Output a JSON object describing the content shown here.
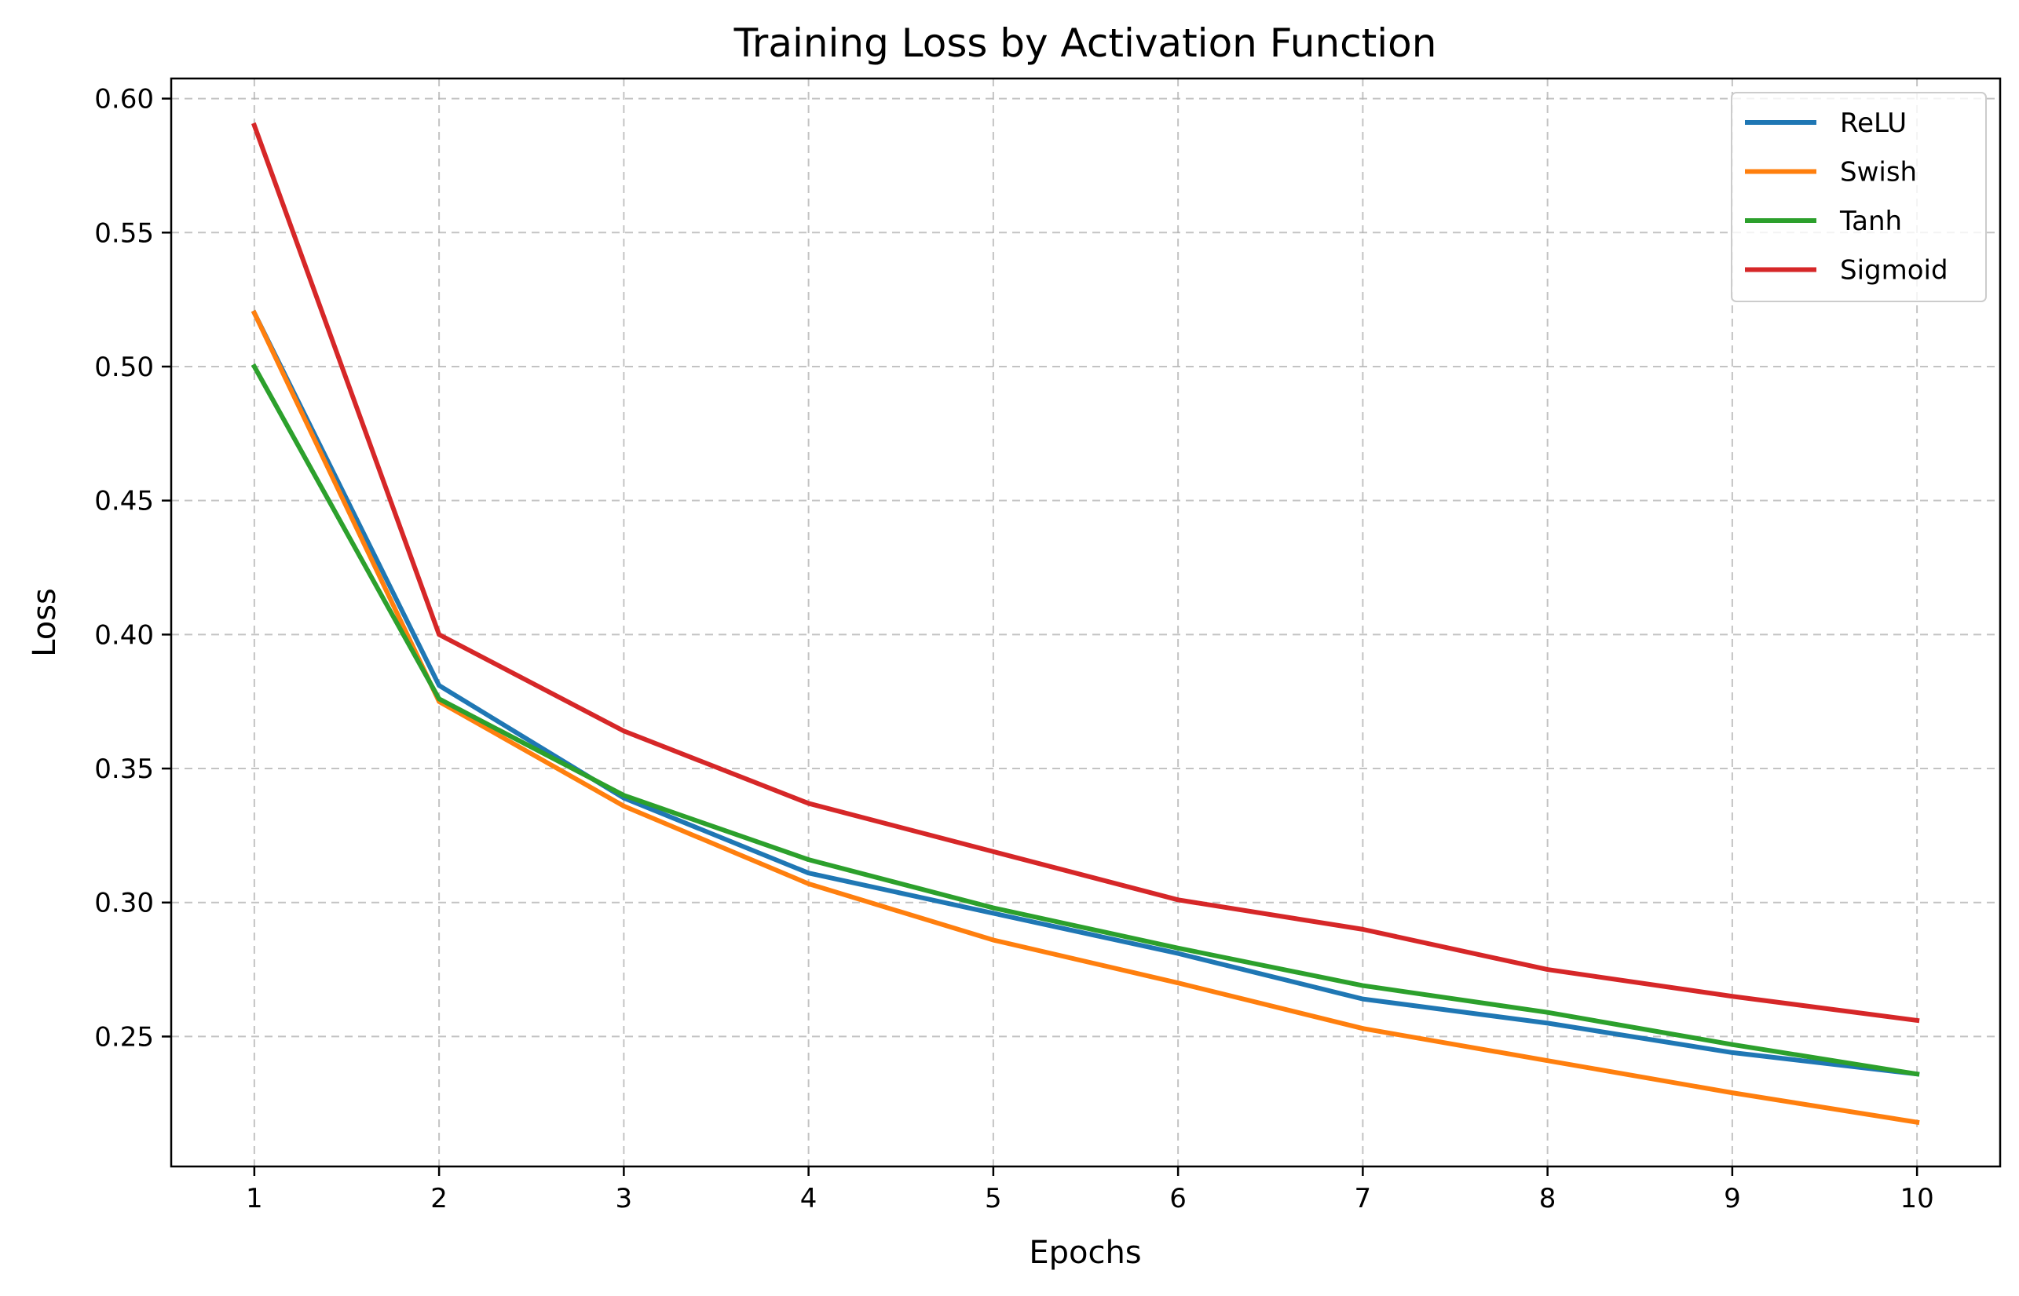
{
  "chart_data": {
    "type": "line",
    "title": "Training Loss by Activation Function",
    "xlabel": "Epochs",
    "ylabel": "Loss",
    "x": [
      1,
      2,
      3,
      4,
      5,
      6,
      7,
      8,
      9,
      10
    ],
    "xlim": [
      0.55,
      10.45
    ],
    "ylim": [
      0.2015,
      0.6075
    ],
    "xticks": [
      1,
      2,
      3,
      4,
      5,
      6,
      7,
      8,
      9,
      10
    ],
    "yticks": [
      0.25,
      0.3,
      0.35,
      0.4,
      0.45,
      0.5,
      0.55,
      0.6
    ],
    "ytick_labels": [
      "0.25",
      "0.30",
      "0.35",
      "0.40",
      "0.45",
      "0.50",
      "0.55",
      "0.60"
    ],
    "grid": true,
    "legend_position": "top-right",
    "series": [
      {
        "name": "ReLU",
        "color": "#1f77b4",
        "values": [
          0.52,
          0.381,
          0.339,
          0.311,
          0.296,
          0.281,
          0.264,
          0.255,
          0.244,
          0.236
        ]
      },
      {
        "name": "Swish",
        "color": "#ff7f0e",
        "values": [
          0.52,
          0.375,
          0.336,
          0.307,
          0.286,
          0.27,
          0.253,
          0.241,
          0.229,
          0.218
        ]
      },
      {
        "name": "Tanh",
        "color": "#2ca02c",
        "values": [
          0.5,
          0.376,
          0.34,
          0.316,
          0.298,
          0.283,
          0.269,
          0.259,
          0.247,
          0.236
        ]
      },
      {
        "name": "Sigmoid",
        "color": "#d62728",
        "values": [
          0.59,
          0.4,
          0.364,
          0.337,
          0.319,
          0.301,
          0.29,
          0.275,
          0.265,
          0.256
        ]
      }
    ]
  }
}
